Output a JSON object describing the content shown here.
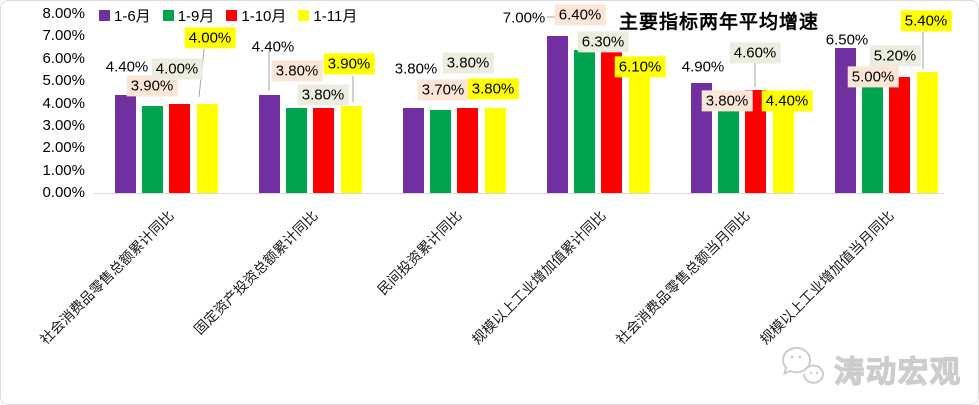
{
  "title": "主要指标两年平均增速",
  "watermark": {
    "text": "涛动宏观"
  },
  "colors": {
    "axis_line": "#D9D9D9",
    "leader_line": "#A6A6A6",
    "series_purple": "#7030A0",
    "series_green": "#00A44F",
    "series_red": "#FF0000",
    "series_yellow": "#FFFF00",
    "label_bg_peach": "#FBE5D6",
    "label_bg_gray": "#EDECE0",
    "label_bg_yellow": "#FFFF00"
  },
  "chart_data": {
    "type": "bar",
    "title": "主要指标两年平均增速",
    "categories": [
      "社会消费品零售总额累计同比",
      "固定资产投资总额累计同比",
      "民间投资累计同比",
      "规模以上工业增加值累计同比",
      "社会消费品零售总额当月同比",
      "规模以上工业增加值当月同比"
    ],
    "series": [
      {
        "name": "1-6月",
        "color": "#7030A0",
        "label_bg": null,
        "values": [
          4.4,
          4.4,
          3.8,
          7.0,
          4.9,
          6.5
        ]
      },
      {
        "name": "1-9月",
        "color": "#00A44F",
        "label_bg": "#FBE5D6",
        "values": [
          3.9,
          3.8,
          3.7,
          6.4,
          3.8,
          5.0
        ]
      },
      {
        "name": "1-10月",
        "color": "#FF0000",
        "label_bg": "#EDECE0",
        "values": [
          4.0,
          3.8,
          3.8,
          6.3,
          4.6,
          5.2
        ]
      },
      {
        "name": "1-11月",
        "color": "#FFFF00",
        "label_bg": "#FFFF00",
        "values": [
          4.0,
          3.9,
          3.8,
          6.1,
          4.4,
          5.4
        ]
      }
    ],
    "ylim": [
      0,
      8
    ],
    "ytick_step": 1,
    "yticks": [
      "0.00%",
      "1.00%",
      "2.00%",
      "3.00%",
      "4.00%",
      "5.00%",
      "6.00%",
      "7.00%",
      "8.00%"
    ],
    "value_format": "0.00%",
    "grid": false,
    "legend_position": "top-left",
    "data_labels": true
  }
}
